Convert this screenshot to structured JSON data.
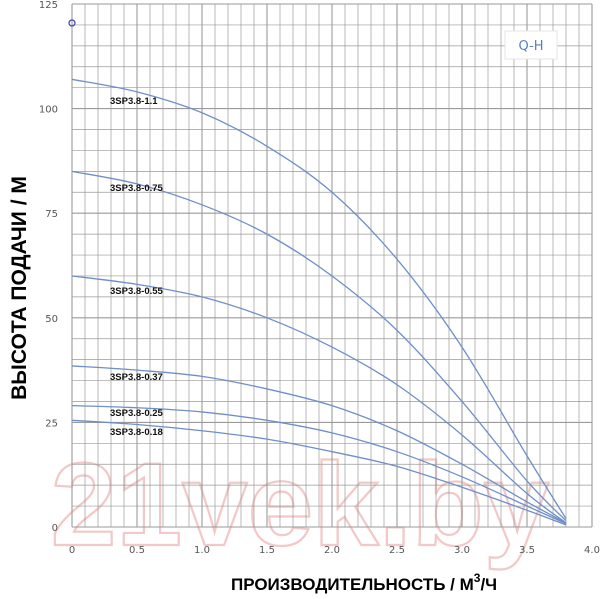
{
  "chart_data": {
    "type": "line",
    "title": "",
    "tag_label": "Q-H",
    "xlabel": "ПРОИЗВОДИТЕЛЬНОСТЬ / М",
    "xlabel_sup": "3",
    "xlabel_tail": "/Ч",
    "ylabel": "ВЫСОТА ПОДАЧИ / М",
    "xlim": [
      0,
      4.0
    ],
    "ylim": [
      0,
      125
    ],
    "x_ticks": [
      "0",
      "0.5",
      "1.0",
      "1.5",
      "2.0",
      "2.5",
      "3.0",
      "3.5",
      "4.0"
    ],
    "y_ticks": [
      "0",
      "25",
      "50",
      "75",
      "100",
      "125"
    ],
    "grid": true,
    "series": [
      {
        "name": "3SP3.8-1.1",
        "x": [
          0,
          0.5,
          1.0,
          1.5,
          2.0,
          2.5,
          3.0,
          3.5,
          3.8
        ],
        "y": [
          107,
          104,
          99,
          91,
          80,
          64,
          43,
          17,
          2
        ]
      },
      {
        "name": "3SP3.8-0.75",
        "x": [
          0,
          0.5,
          1.0,
          1.5,
          2.0,
          2.5,
          3.0,
          3.5,
          3.8
        ],
        "y": [
          85,
          82,
          77,
          70,
          60,
          47,
          30,
          11,
          1.5
        ]
      },
      {
        "name": "3SP3.8-0.55",
        "x": [
          0,
          0.5,
          1.0,
          1.5,
          2.0,
          2.5,
          3.0,
          3.5,
          3.8
        ],
        "y": [
          60,
          58,
          55,
          50,
          43,
          34,
          22,
          8,
          1
        ]
      },
      {
        "name": "3SP3.8-0.37",
        "x": [
          0,
          0.5,
          1.0,
          1.5,
          2.0,
          2.5,
          3.0,
          3.5,
          3.8
        ],
        "y": [
          38.5,
          37.5,
          36,
          33,
          29,
          23,
          15,
          6,
          1
        ]
      },
      {
        "name": "3SP3.8-0.25",
        "x": [
          0,
          0.5,
          1.0,
          1.5,
          2.0,
          2.5,
          3.0,
          3.5,
          3.8
        ],
        "y": [
          29,
          28.5,
          27.5,
          25.5,
          22.5,
          18,
          12,
          5,
          0.8
        ]
      },
      {
        "name": "3SP3.8-0.18",
        "x": [
          0,
          0.5,
          1.0,
          1.5,
          2.0,
          2.5,
          3.0,
          3.5,
          3.8
        ],
        "y": [
          25.5,
          24.5,
          23,
          21,
          18,
          14.5,
          9.5,
          4,
          0.5
        ]
      }
    ],
    "line_color": "#6f8fc8",
    "grid_color": "#9a9a9a",
    "watermark": "21vek.by"
  }
}
